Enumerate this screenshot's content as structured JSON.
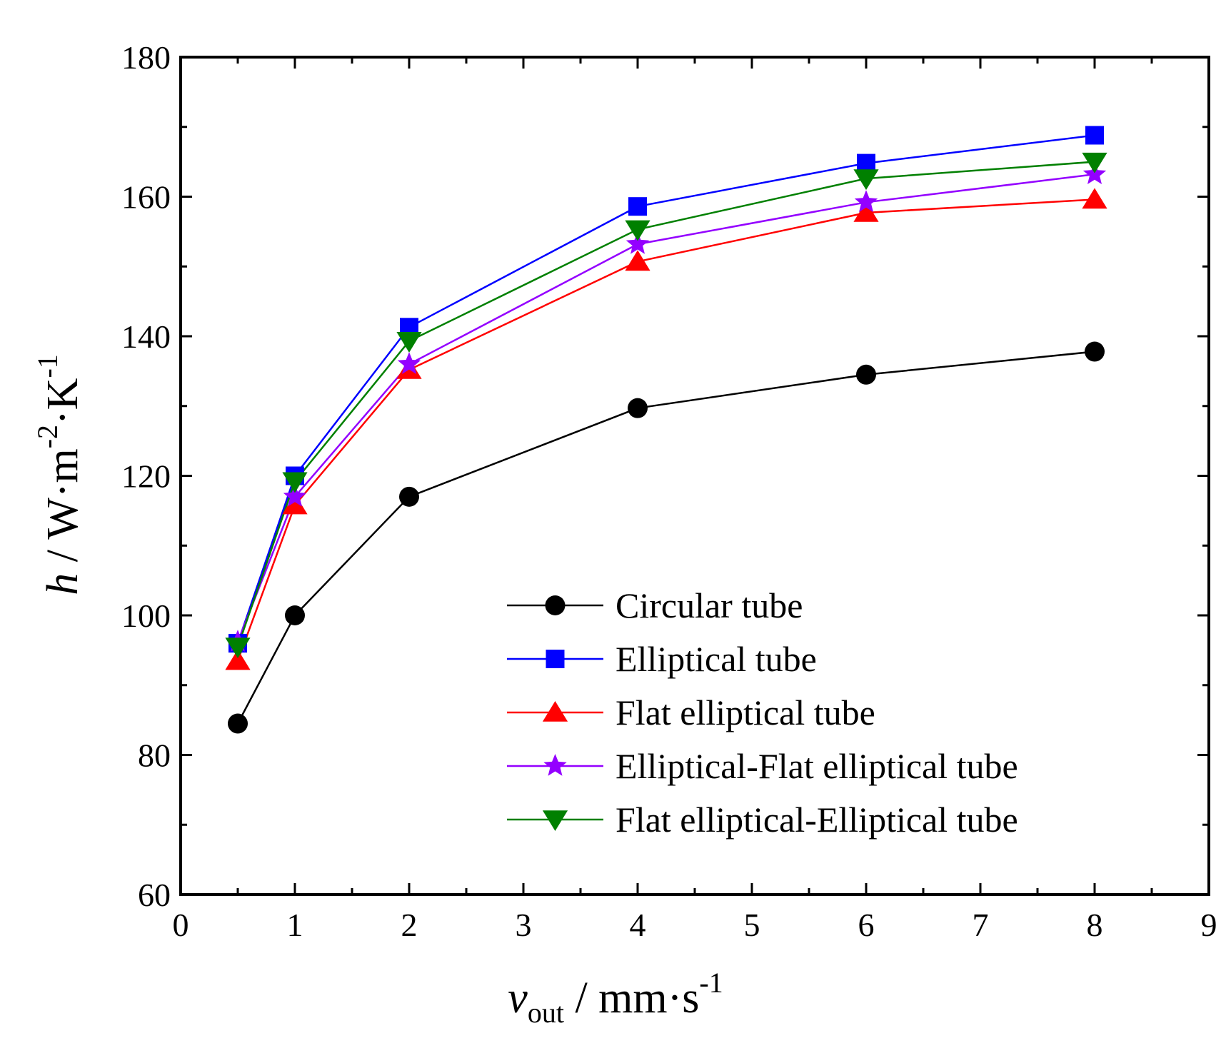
{
  "chart_data": {
    "type": "line",
    "title": "",
    "xlabel": {
      "symbol": "v",
      "subscript": "out",
      "unit": " / mm·s",
      "unit_exp": "-1"
    },
    "ylabel": {
      "symbol": "h",
      "unit": " / W·m",
      "unit_exp1": "-2",
      "unit_mid": "·K",
      "unit_exp2": "-1"
    },
    "xlim": [
      0,
      9
    ],
    "ylim": [
      60,
      180
    ],
    "x_ticks": [
      "0",
      "1",
      "2",
      "3",
      "4",
      "5",
      "6",
      "7",
      "8",
      "9"
    ],
    "y_ticks": [
      "60",
      "80",
      "100",
      "120",
      "140",
      "160",
      "180"
    ],
    "grid": false,
    "legend_position": "center-right",
    "x": [
      0.5,
      1,
      2,
      4,
      6,
      8
    ],
    "series": [
      {
        "name": "Circular tube",
        "marker": "circle",
        "color": "#000000",
        "values": [
          84.5,
          100.0,
          117.0,
          129.7,
          134.5,
          137.8
        ]
      },
      {
        "name": "Elliptical tube",
        "marker": "square",
        "color": "#0000ff",
        "values": [
          96.0,
          120.0,
          141.3,
          158.6,
          164.8,
          168.8
        ]
      },
      {
        "name": "Flat elliptical tube",
        "marker": "triangle-up",
        "color": "#ff0000",
        "values": [
          93.5,
          115.8,
          135.2,
          150.7,
          157.7,
          159.6
        ]
      },
      {
        "name": "Elliptical-Flat elliptical tube",
        "marker": "star",
        "color": "#9400ff",
        "values": [
          96.2,
          117.0,
          136.0,
          153.2,
          159.2,
          163.2
        ]
      },
      {
        "name": "Flat elliptical-Elliptical tube",
        "marker": "triangle-down",
        "color": "#008000",
        "values": [
          95.5,
          119.2,
          139.3,
          155.3,
          162.6,
          165.0
        ]
      }
    ]
  }
}
